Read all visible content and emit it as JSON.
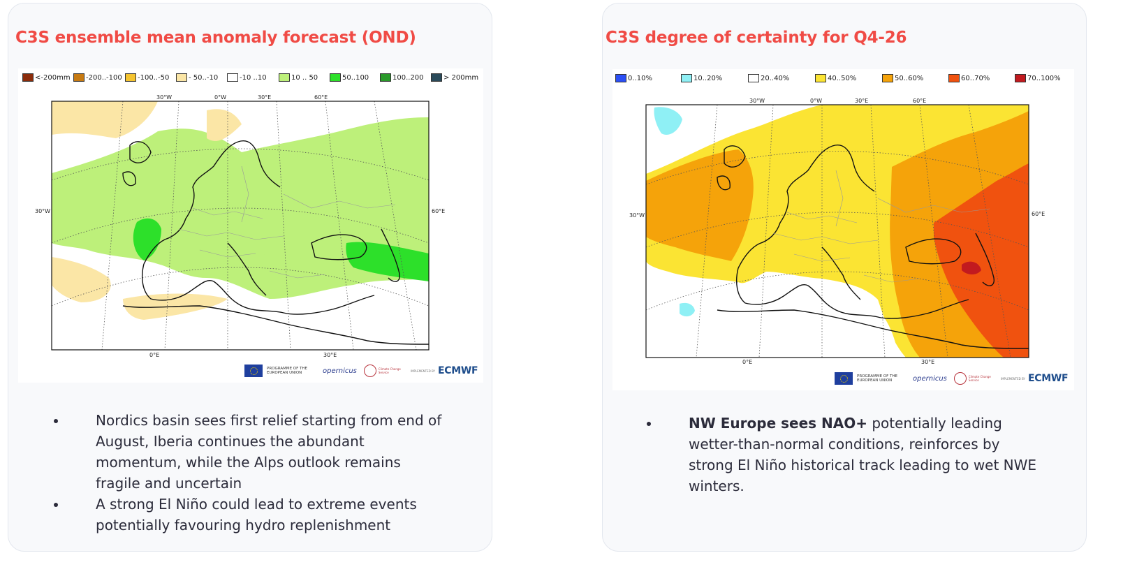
{
  "left_panel": {
    "title": "C3S ensemble mean anomaly forecast (OND)",
    "legend": [
      {
        "label": "<-200mm",
        "color": "#8b2c0b"
      },
      {
        "label": "-200..-100",
        "color": "#c77a12"
      },
      {
        "label": "-100..-50",
        "color": "#f5c430"
      },
      {
        "label": "- 50..-10",
        "color": "#fbe6a6"
      },
      {
        "label": "-10 ..10",
        "color": "#ffffff"
      },
      {
        "label": "10 .. 50",
        "color": "#bdf07a"
      },
      {
        "label": "50..100",
        "color": "#2de02a"
      },
      {
        "label": "100..200",
        "color": "#2a9a2a"
      },
      {
        "label": "> 200mm",
        "color": "#2a4a5a"
      }
    ],
    "map_labels": {
      "lon_30w": "30°W",
      "lon_0w": "0°W",
      "lon_30e": "30°E",
      "lon_60e": "60°E",
      "left_30w": "30°W",
      "right_60e": "60°E",
      "bottom_0e": "0°E",
      "bottom_30e": "30°E"
    },
    "logos": {
      "programme": "PROGRAMME OF THE EUROPEAN UNION",
      "copernicus": "opernicus",
      "ccs": "Climate Change Service",
      "implemented": "IMPLEMENTED BY",
      "ecmwf": "ECMWF"
    },
    "bullets": [
      "Nordics basin sees first relief starting from end of August, Iberia continues the abundant momentum, while the Alps outlook remains fragile and uncertain",
      "A strong El Niño could lead to extreme events potentially favouring hydro replenishment"
    ]
  },
  "right_panel": {
    "title": "C3S degree of certainty for Q4-26",
    "legend": [
      {
        "label": "0..10%",
        "color": "#2b4ff5"
      },
      {
        "label": "10..20%",
        "color": "#8ff0f5"
      },
      {
        "label": "20..40%",
        "color": "#ffffff"
      },
      {
        "label": "40..50%",
        "color": "#fbe433"
      },
      {
        "label": "50..60%",
        "color": "#f5a30a"
      },
      {
        "label": "60..70%",
        "color": "#f0520f"
      },
      {
        "label": "70..100%",
        "color": "#c21a1f"
      }
    ],
    "map_labels": {
      "lon_30w": "30°W",
      "lon_0w": "0°W",
      "lon_30e": "30°E",
      "lon_60e": "60°E",
      "left_30w": "30°W",
      "right_60e": "60°E",
      "bottom_0e": "0°E",
      "bottom_30e": "30°E"
    },
    "logos": {
      "programme": "PROGRAMME OF THE EUROPEAN UNION",
      "copernicus": "opernicus",
      "ccs": "Climate Change Service",
      "implemented": "IMPLEMENTED BY",
      "ecmwf": "ECMWF"
    },
    "bullet_bold": "NW Europe sees NAO+",
    "bullet_rest": " potentially leading wetter-than-normal conditions, reinforces by strong El Niño historical track leading to wet NWE winters."
  }
}
